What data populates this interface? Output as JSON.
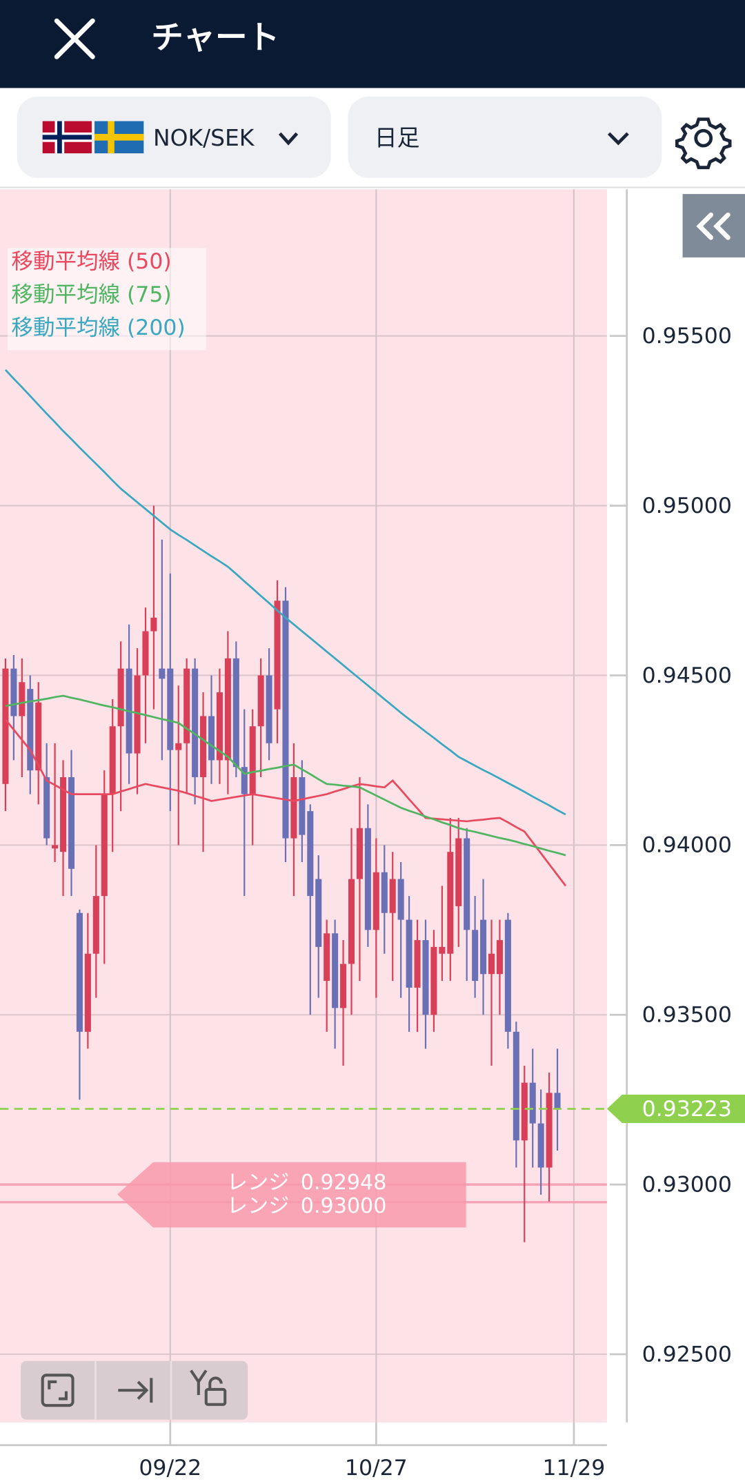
{
  "header": {
    "title": "チャート",
    "pair": "NOK/SEK",
    "timeframe": "日足"
  },
  "chart_data": {
    "type": "candlestick",
    "categories": [
      null,
      null,
      null,
      null,
      null,
      null,
      null,
      null,
      null,
      null,
      null,
      null,
      null,
      null,
      null,
      null,
      null,
      null,
      null,
      null,
      "09/22",
      null,
      null,
      null,
      null,
      null,
      null,
      null,
      null,
      null,
      null,
      null,
      null,
      null,
      null,
      null,
      null,
      null,
      null,
      null,
      null,
      null,
      null,
      null,
      null,
      "10/27",
      null,
      null,
      null,
      null,
      null,
      null,
      null,
      null,
      null,
      null,
      null,
      null,
      null,
      null,
      null,
      null,
      null,
      null,
      null,
      null,
      null,
      null,
      null,
      "11/29"
    ],
    "open": [
      0.9418,
      0.9452,
      0.9438,
      0.9446,
      0.9422,
      0.942,
      0.9399,
      0.9398,
      0.942,
      0.938,
      0.9345,
      0.9368,
      0.9385,
      0.9415,
      0.9435,
      0.9452,
      0.9427,
      0.945,
      0.9463,
      0.9452,
      0.9452,
      0.9428,
      0.943,
      0.9452,
      0.942,
      0.9438,
      0.9425,
      0.9425,
      0.9455,
      0.9423,
      0.9415,
      0.9435,
      0.945,
      0.944,
      0.9472,
      0.9402,
      0.942,
      0.941,
      0.939,
      0.936,
      0.9374,
      0.9352,
      0.9365,
      0.939,
      0.9405,
      0.9375,
      0.9392,
      0.938,
      0.939,
      0.9378,
      0.9358,
      0.9372,
      0.935,
      0.9368,
      0.9368,
      0.9382,
      0.9402,
      0.9375,
      0.9378,
      0.9362,
      0.9362,
      0.9378,
      0.9345,
      0.9313,
      0.933,
      0.9318,
      0.9305,
      0.9327,
      null,
      null
    ],
    "high": [
      0.9455,
      0.9456,
      0.9455,
      0.945,
      0.9448,
      0.943,
      0.943,
      0.9425,
      0.9428,
      0.9381,
      0.938,
      0.94,
      0.9422,
      0.9443,
      0.946,
      0.9465,
      0.9458,
      0.947,
      0.95,
      0.949,
      0.948,
      0.9447,
      0.9455,
      0.9455,
      0.9445,
      0.945,
      0.9452,
      0.9463,
      0.946,
      0.944,
      0.944,
      0.9455,
      0.9458,
      0.9478,
      0.9476,
      0.943,
      0.9425,
      0.9412,
      0.9397,
      0.9378,
      0.9378,
      0.9372,
      0.9405,
      0.942,
      0.9412,
      0.9402,
      0.94,
      0.9398,
      0.9395,
      0.9385,
      0.9378,
      0.9378,
      0.9375,
      0.9388,
      0.9408,
      0.9408,
      0.9405,
      0.9385,
      0.939,
      0.9378,
      0.9378,
      0.938,
      0.9348,
      0.9335,
      0.934,
      0.9328,
      0.9333,
      0.934,
      null,
      null
    ],
    "low": [
      0.941,
      0.9425,
      0.942,
      0.9415,
      0.9412,
      0.94,
      0.9395,
      0.9385,
      0.9385,
      0.9325,
      0.934,
      0.9355,
      0.9365,
      0.9398,
      0.941,
      0.9418,
      0.9415,
      0.943,
      0.944,
      0.9425,
      0.941,
      0.94,
      0.9415,
      0.9412,
      0.9398,
      0.9418,
      0.9418,
      0.9415,
      0.942,
      0.9385,
      0.94,
      0.942,
      0.9425,
      0.943,
      0.9395,
      0.9385,
      0.9395,
      0.935,
      0.9355,
      0.9345,
      0.934,
      0.9335,
      0.935,
      0.936,
      0.937,
      0.9355,
      0.9368,
      0.936,
      0.9355,
      0.9345,
      0.9345,
      0.934,
      0.9345,
      0.936,
      0.936,
      0.937,
      0.936,
      0.9355,
      0.935,
      0.9335,
      0.935,
      0.934,
      0.9305,
      0.9283,
      0.9305,
      0.9297,
      0.9295,
      0.931,
      null,
      null
    ],
    "close": [
      0.9452,
      0.9438,
      0.9448,
      0.9422,
      0.9442,
      0.9402,
      0.94,
      0.942,
      0.9393,
      0.9345,
      0.9368,
      0.9385,
      0.9415,
      0.9435,
      0.9452,
      0.9427,
      0.945,
      0.9463,
      0.9467,
      0.9449,
      0.9428,
      0.943,
      0.9452,
      0.942,
      0.9438,
      0.9425,
      0.9445,
      0.9455,
      0.9423,
      0.9415,
      0.9435,
      0.945,
      0.943,
      0.9472,
      0.9402,
      0.942,
      0.9403,
      0.9385,
      0.937,
      0.9374,
      0.9352,
      0.9365,
      0.939,
      0.9405,
      0.9375,
      0.9392,
      0.938,
      0.939,
      0.9378,
      0.9358,
      0.9372,
      0.935,
      0.937,
      0.937,
      0.9398,
      0.9402,
      0.9375,
      0.936,
      0.9362,
      0.9368,
      0.9372,
      0.9345,
      0.9313,
      0.933,
      0.9318,
      0.9305,
      0.9327,
      0.93223,
      null,
      null
    ],
    "up_color": "#d8405a",
    "down_color": "#6a70b6",
    "series": [
      {
        "name": "移動平均線 (50)",
        "color": "#e8495e",
        "values": [
          0.9437,
          0.9434,
          0.9431,
          0.9428,
          0.94235,
          0.9419,
          0.94177,
          0.94163,
          0.9415,
          0.9415,
          0.9415,
          0.9415,
          0.9415,
          0.9415,
          0.94158,
          0.94165,
          0.94173,
          0.9418,
          0.94175,
          0.9417,
          0.94165,
          0.9416,
          0.94153,
          0.94145,
          0.94138,
          0.9413,
          0.94134,
          0.94138,
          0.94142,
          0.94146,
          0.9415,
          0.94146,
          0.94142,
          0.94138,
          0.94134,
          0.9413,
          0.94135,
          0.9414,
          0.94145,
          0.9415,
          0.94158,
          0.94165,
          0.94173,
          0.9418,
          0.94177,
          0.94173,
          0.9417,
          0.9419,
          0.94163,
          0.94135,
          0.94108,
          0.9408,
          0.94078,
          0.94076,
          0.94074,
          0.94072,
          0.9407,
          0.94073,
          0.94075,
          0.94078,
          0.9408,
          0.94067,
          0.94053,
          0.9404,
          0.94008,
          0.93976,
          0.93944,
          0.93912,
          0.9388,
          null
        ]
      },
      {
        "name": "移動平均線 (75)",
        "color": "#4fb560",
        "values": [
          0.9441,
          0.94414,
          0.94419,
          0.94423,
          0.94427,
          0.94431,
          0.94436,
          0.9444,
          0.94434,
          0.94429,
          0.94423,
          0.94417,
          0.94411,
          0.94406,
          0.944,
          0.94394,
          0.94389,
          0.94383,
          0.94377,
          0.94371,
          0.94366,
          0.9436,
          0.94343,
          0.94327,
          0.9431,
          0.94293,
          0.94277,
          0.9426,
          0.94235,
          0.9421,
          0.94215,
          0.94219,
          0.94224,
          0.94228,
          0.94233,
          0.94237,
          0.94223,
          0.94209,
          0.94194,
          0.9418,
          0.94178,
          0.94175,
          0.94173,
          0.9417,
          0.94158,
          0.94146,
          0.94134,
          0.94122,
          0.9411,
          0.94101,
          0.94093,
          0.94084,
          0.94076,
          0.94067,
          0.94059,
          0.9405,
          0.94044,
          0.94039,
          0.94033,
          0.94027,
          0.94021,
          0.94016,
          0.9401,
          0.94003,
          0.93997,
          0.9399,
          0.93983,
          0.93977,
          0.9397,
          null
        ]
      },
      {
        "name": "移動平均線 (200)",
        "color": "#3aa7c0",
        "values": [
          0.954,
          0.95374,
          0.95349,
          0.95323,
          0.95297,
          0.95271,
          0.95246,
          0.9522,
          0.95196,
          0.95171,
          0.95147,
          0.95123,
          0.95099,
          0.95074,
          0.9505,
          0.9503,
          0.9501,
          0.9499,
          0.9497,
          0.9495,
          0.9493,
          0.94914,
          0.94899,
          0.94883,
          0.94867,
          0.94851,
          0.94836,
          0.9482,
          0.94799,
          0.94777,
          0.94756,
          0.94734,
          0.94713,
          0.94691,
          0.9467,
          0.9465,
          0.9463,
          0.9461,
          0.9459,
          0.9457,
          0.9455,
          0.9453,
          0.9451,
          0.9449,
          0.9447,
          0.9445,
          0.9443,
          0.9441,
          0.9439,
          0.94371,
          0.94353,
          0.94334,
          0.94316,
          0.94297,
          0.94279,
          0.9426,
          0.94247,
          0.94234,
          0.94221,
          0.94209,
          0.94196,
          0.94183,
          0.9417,
          0.94157,
          0.94143,
          0.9413,
          0.94117,
          0.94103,
          0.9409,
          null
        ]
      }
    ],
    "ylim": [
      0.92299,
      0.95932
    ],
    "yticks": [
      {
        "value": 0.955,
        "label": "0.95500"
      },
      {
        "value": 0.95,
        "label": "0.95000"
      },
      {
        "value": 0.945,
        "label": "0.94500"
      },
      {
        "value": 0.94,
        "label": "0.94000"
      },
      {
        "value": 0.935,
        "label": "0.93500"
      },
      {
        "value": 0.93,
        "label": "0.93000"
      },
      {
        "value": 0.925,
        "label": "0.92500"
      }
    ],
    "grid": true,
    "current_price": 0.93223,
    "current_price_color": "#8fd14f",
    "ranges": [
      {
        "name": "レンジ",
        "value": 0.92948
      },
      {
        "name": "レンジ",
        "value": 0.93,
        "value_label": "0.93000"
      }
    ],
    "range_color": "#f7a3b6"
  }
}
